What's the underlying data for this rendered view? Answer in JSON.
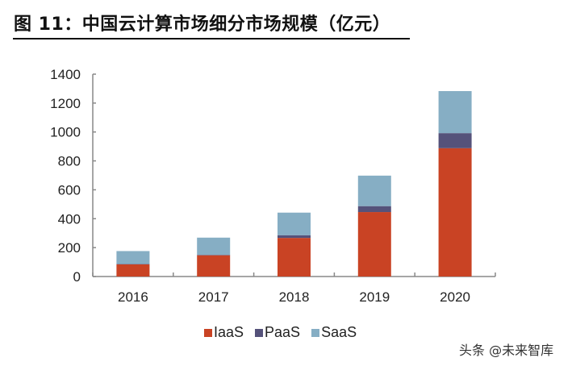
{
  "title": "图 11：中国云计算市场细分市场规模（亿元）",
  "watermark": "头条 @未来智库",
  "chart_data": {
    "type": "bar",
    "stacked": true,
    "title": "图 11：中国云计算市场细分市场规模（亿元）",
    "xlabel": "",
    "ylabel": "",
    "categories": [
      "2016",
      "2017",
      "2018",
      "2019",
      "2020"
    ],
    "ylim": [
      0,
      1400
    ],
    "yticks": [
      0,
      200,
      400,
      600,
      800,
      1000,
      1200,
      1400
    ],
    "grid": false,
    "legend_position": "bottom",
    "series": [
      {
        "name": "IaaS",
        "color": "#C94324",
        "values": [
          84,
          147,
          267,
          446,
          888
        ]
      },
      {
        "name": "PaaS",
        "color": "#55527A",
        "values": [
          3,
          3,
          19,
          41,
          104
        ]
      },
      {
        "name": "SaaS",
        "color": "#86AEC4",
        "values": [
          89,
          119,
          156,
          211,
          291
        ]
      }
    ]
  }
}
